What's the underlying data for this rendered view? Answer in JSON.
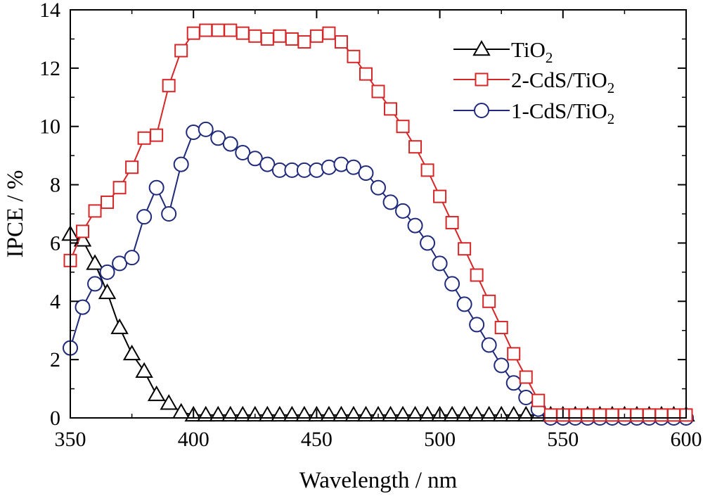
{
  "chart_data": {
    "type": "line",
    "title": "",
    "xlabel": "Wavelength / nm",
    "ylabel": "IPCE / %",
    "xlim": [
      350,
      600
    ],
    "ylim": [
      0,
      14
    ],
    "x_ticks": [
      350,
      400,
      450,
      500,
      550,
      600
    ],
    "y_ticks": [
      0,
      2,
      4,
      6,
      8,
      10,
      12,
      14
    ],
    "grid": false,
    "legend_position": "top-right",
    "series": [
      {
        "name": "TiO",
        "name_subscript": "2",
        "color": "#000000",
        "marker": "triangle",
        "x": [
          350,
          355,
          360,
          365,
          370,
          375,
          380,
          385,
          390,
          395,
          400,
          405,
          410,
          415,
          420,
          425,
          430,
          435,
          440,
          445,
          450,
          455,
          460,
          465,
          470,
          475,
          480,
          485,
          490,
          495,
          500,
          505,
          510,
          515,
          520,
          525,
          530,
          535,
          540,
          545,
          550,
          555,
          560,
          565,
          570,
          575,
          580,
          585,
          590,
          595,
          600
        ],
        "y": [
          6.3,
          6.1,
          5.3,
          4.3,
          3.1,
          2.2,
          1.6,
          0.8,
          0.5,
          0.2,
          0.1,
          0.1,
          0.1,
          0.1,
          0.1,
          0.1,
          0.1,
          0.1,
          0.1,
          0.1,
          0.1,
          0.1,
          0.1,
          0.1,
          0.1,
          0.1,
          0.1,
          0.1,
          0.1,
          0.1,
          0.1,
          0.1,
          0.1,
          0.1,
          0.1,
          0.1,
          0.1,
          0.1,
          0.1,
          0.1,
          0.1,
          0.1,
          0.1,
          0.1,
          0.1,
          0.1,
          0.1,
          0.1,
          0.1,
          0.1,
          0.1
        ]
      },
      {
        "name": "2-CdS/TiO",
        "name_subscript": "2",
        "color": "#d62728",
        "marker": "square",
        "x": [
          350,
          355,
          360,
          365,
          370,
          375,
          380,
          385,
          390,
          395,
          400,
          405,
          410,
          415,
          420,
          425,
          430,
          435,
          440,
          445,
          450,
          455,
          460,
          465,
          470,
          475,
          480,
          485,
          490,
          495,
          500,
          505,
          510,
          515,
          520,
          525,
          530,
          535,
          540,
          545,
          550,
          555,
          560,
          565,
          570,
          575,
          580,
          585,
          590,
          595,
          600
        ],
        "y": [
          5.4,
          6.4,
          7.1,
          7.4,
          7.9,
          8.6,
          9.6,
          9.7,
          11.4,
          12.6,
          13.2,
          13.3,
          13.3,
          13.3,
          13.2,
          13.1,
          13.0,
          13.1,
          13.0,
          12.9,
          13.1,
          13.2,
          12.9,
          12.4,
          11.8,
          11.2,
          10.6,
          10.0,
          9.3,
          8.5,
          7.6,
          6.7,
          5.8,
          4.9,
          4.0,
          3.1,
          2.2,
          1.4,
          0.6,
          0.1,
          0.1,
          0.1,
          0.1,
          0.1,
          0.1,
          0.1,
          0.1,
          0.1,
          0.1,
          0.1,
          0.1
        ]
      },
      {
        "name": "1-CdS/TiO",
        "name_subscript": "2",
        "color": "#1f2a7a",
        "marker": "circle",
        "x": [
          350,
          355,
          360,
          365,
          370,
          375,
          380,
          385,
          390,
          395,
          400,
          405,
          410,
          415,
          420,
          425,
          430,
          435,
          440,
          445,
          450,
          455,
          460,
          465,
          470,
          475,
          480,
          485,
          490,
          495,
          500,
          505,
          510,
          515,
          520,
          525,
          530,
          535,
          540,
          545,
          550,
          555,
          560,
          565,
          570,
          575,
          580,
          585,
          590,
          595,
          600
        ],
        "y": [
          2.4,
          3.8,
          4.6,
          5.0,
          5.3,
          5.5,
          6.9,
          7.9,
          7.0,
          8.7,
          9.8,
          9.9,
          9.6,
          9.4,
          9.1,
          8.9,
          8.7,
          8.5,
          8.5,
          8.5,
          8.5,
          8.6,
          8.7,
          8.6,
          8.4,
          7.9,
          7.4,
          7.1,
          6.6,
          6.0,
          5.3,
          4.6,
          3.9,
          3.2,
          2.5,
          1.8,
          1.2,
          0.7,
          0.3,
          0.0,
          0.0,
          0.0,
          0.0,
          0.0,
          0.0,
          0.0,
          0.0,
          0.0,
          0.0,
          0.0,
          0.0
        ]
      }
    ]
  }
}
